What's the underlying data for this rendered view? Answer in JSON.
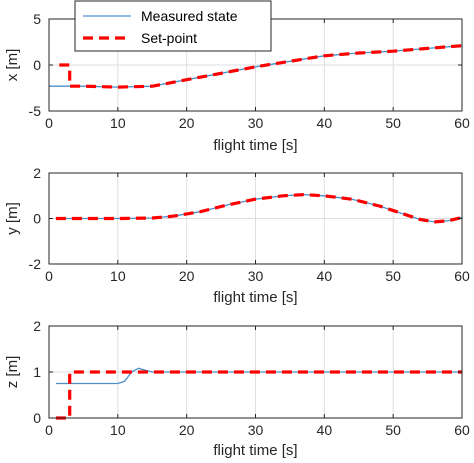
{
  "chart_data": [
    {
      "type": "line",
      "xlabel": "flight time [s]",
      "ylabel": "x [m]",
      "xlim": [
        0,
        60
      ],
      "ylim": [
        -5,
        5
      ],
      "xticks": [
        "0",
        "10",
        "20",
        "30",
        "40",
        "50",
        "60"
      ],
      "yticks": [
        "-5",
        "0",
        "5"
      ],
      "grid": true,
      "legend": {
        "placement": "top-left",
        "entries": [
          "Measured state",
          "Set-point"
        ]
      },
      "series": [
        {
          "name": "Measured state",
          "x": [
            0,
            2,
            3,
            5,
            10,
            15,
            20,
            25,
            30,
            35,
            40,
            45,
            50,
            55,
            60
          ],
          "y": [
            -2.3,
            -2.3,
            -2.3,
            -2.3,
            -2.4,
            -2.3,
            -1.6,
            -0.9,
            -0.2,
            0.4,
            1.0,
            1.3,
            1.5,
            1.8,
            2.1
          ]
        },
        {
          "name": "Set-point",
          "x": [
            1.5,
            3,
            3,
            5,
            10,
            15,
            20,
            25,
            30,
            35,
            40,
            45,
            50,
            55,
            60
          ],
          "y": [
            0,
            0,
            -2.3,
            -2.3,
            -2.4,
            -2.3,
            -1.6,
            -0.9,
            -0.2,
            0.4,
            1.0,
            1.3,
            1.5,
            1.8,
            2.1
          ]
        }
      ]
    },
    {
      "type": "line",
      "xlabel": "flight time [s]",
      "ylabel": "y [m]",
      "xlim": [
        0,
        60
      ],
      "ylim": [
        -2,
        2
      ],
      "xticks": [
        "0",
        "10",
        "20",
        "30",
        "40",
        "50",
        "60"
      ],
      "yticks": [
        "-2",
        "0",
        "2"
      ],
      "grid": true,
      "series": [
        {
          "name": "Measured state",
          "x": [
            1,
            5,
            10,
            15,
            18,
            22,
            26,
            30,
            34,
            37,
            40,
            44,
            48,
            52,
            54,
            56,
            58,
            60
          ],
          "y": [
            0,
            0,
            0,
            0.02,
            0.1,
            0.3,
            0.6,
            0.85,
            1.0,
            1.05,
            1.0,
            0.85,
            0.55,
            0.15,
            -0.05,
            -0.15,
            -0.1,
            0.05
          ]
        },
        {
          "name": "Set-point",
          "x": [
            1,
            5,
            10,
            15,
            18,
            22,
            26,
            30,
            34,
            37,
            40,
            44,
            48,
            52,
            54,
            56,
            58,
            60
          ],
          "y": [
            0,
            0,
            0,
            0.02,
            0.1,
            0.3,
            0.6,
            0.85,
            1.0,
            1.05,
            1.0,
            0.85,
            0.55,
            0.15,
            -0.05,
            -0.15,
            -0.1,
            0.05
          ]
        }
      ]
    },
    {
      "type": "line",
      "xlabel": "flight time [s]",
      "ylabel": "z [m]",
      "xlim": [
        0,
        60
      ],
      "ylim": [
        0,
        2
      ],
      "xticks": [
        "0",
        "10",
        "20",
        "30",
        "40",
        "50",
        "60"
      ],
      "yticks": [
        "0",
        "1",
        "2"
      ],
      "grid": true,
      "series": [
        {
          "name": "Measured state",
          "x": [
            1,
            5,
            10,
            11,
            12,
            13,
            14,
            15,
            20,
            30,
            40,
            50,
            60
          ],
          "y": [
            0.75,
            0.75,
            0.75,
            0.8,
            1.0,
            1.08,
            1.04,
            1.0,
            1.0,
            1.0,
            1.0,
            1.0,
            1.0
          ]
        },
        {
          "name": "Set-point",
          "x": [
            1,
            3,
            3,
            10,
            20,
            30,
            40,
            50,
            60
          ],
          "y": [
            0,
            0,
            1,
            1,
            1,
            1,
            1,
            1,
            1
          ]
        }
      ]
    }
  ],
  "colors": {
    "measured": "#4d90cc",
    "setpoint": "#ff0000"
  }
}
